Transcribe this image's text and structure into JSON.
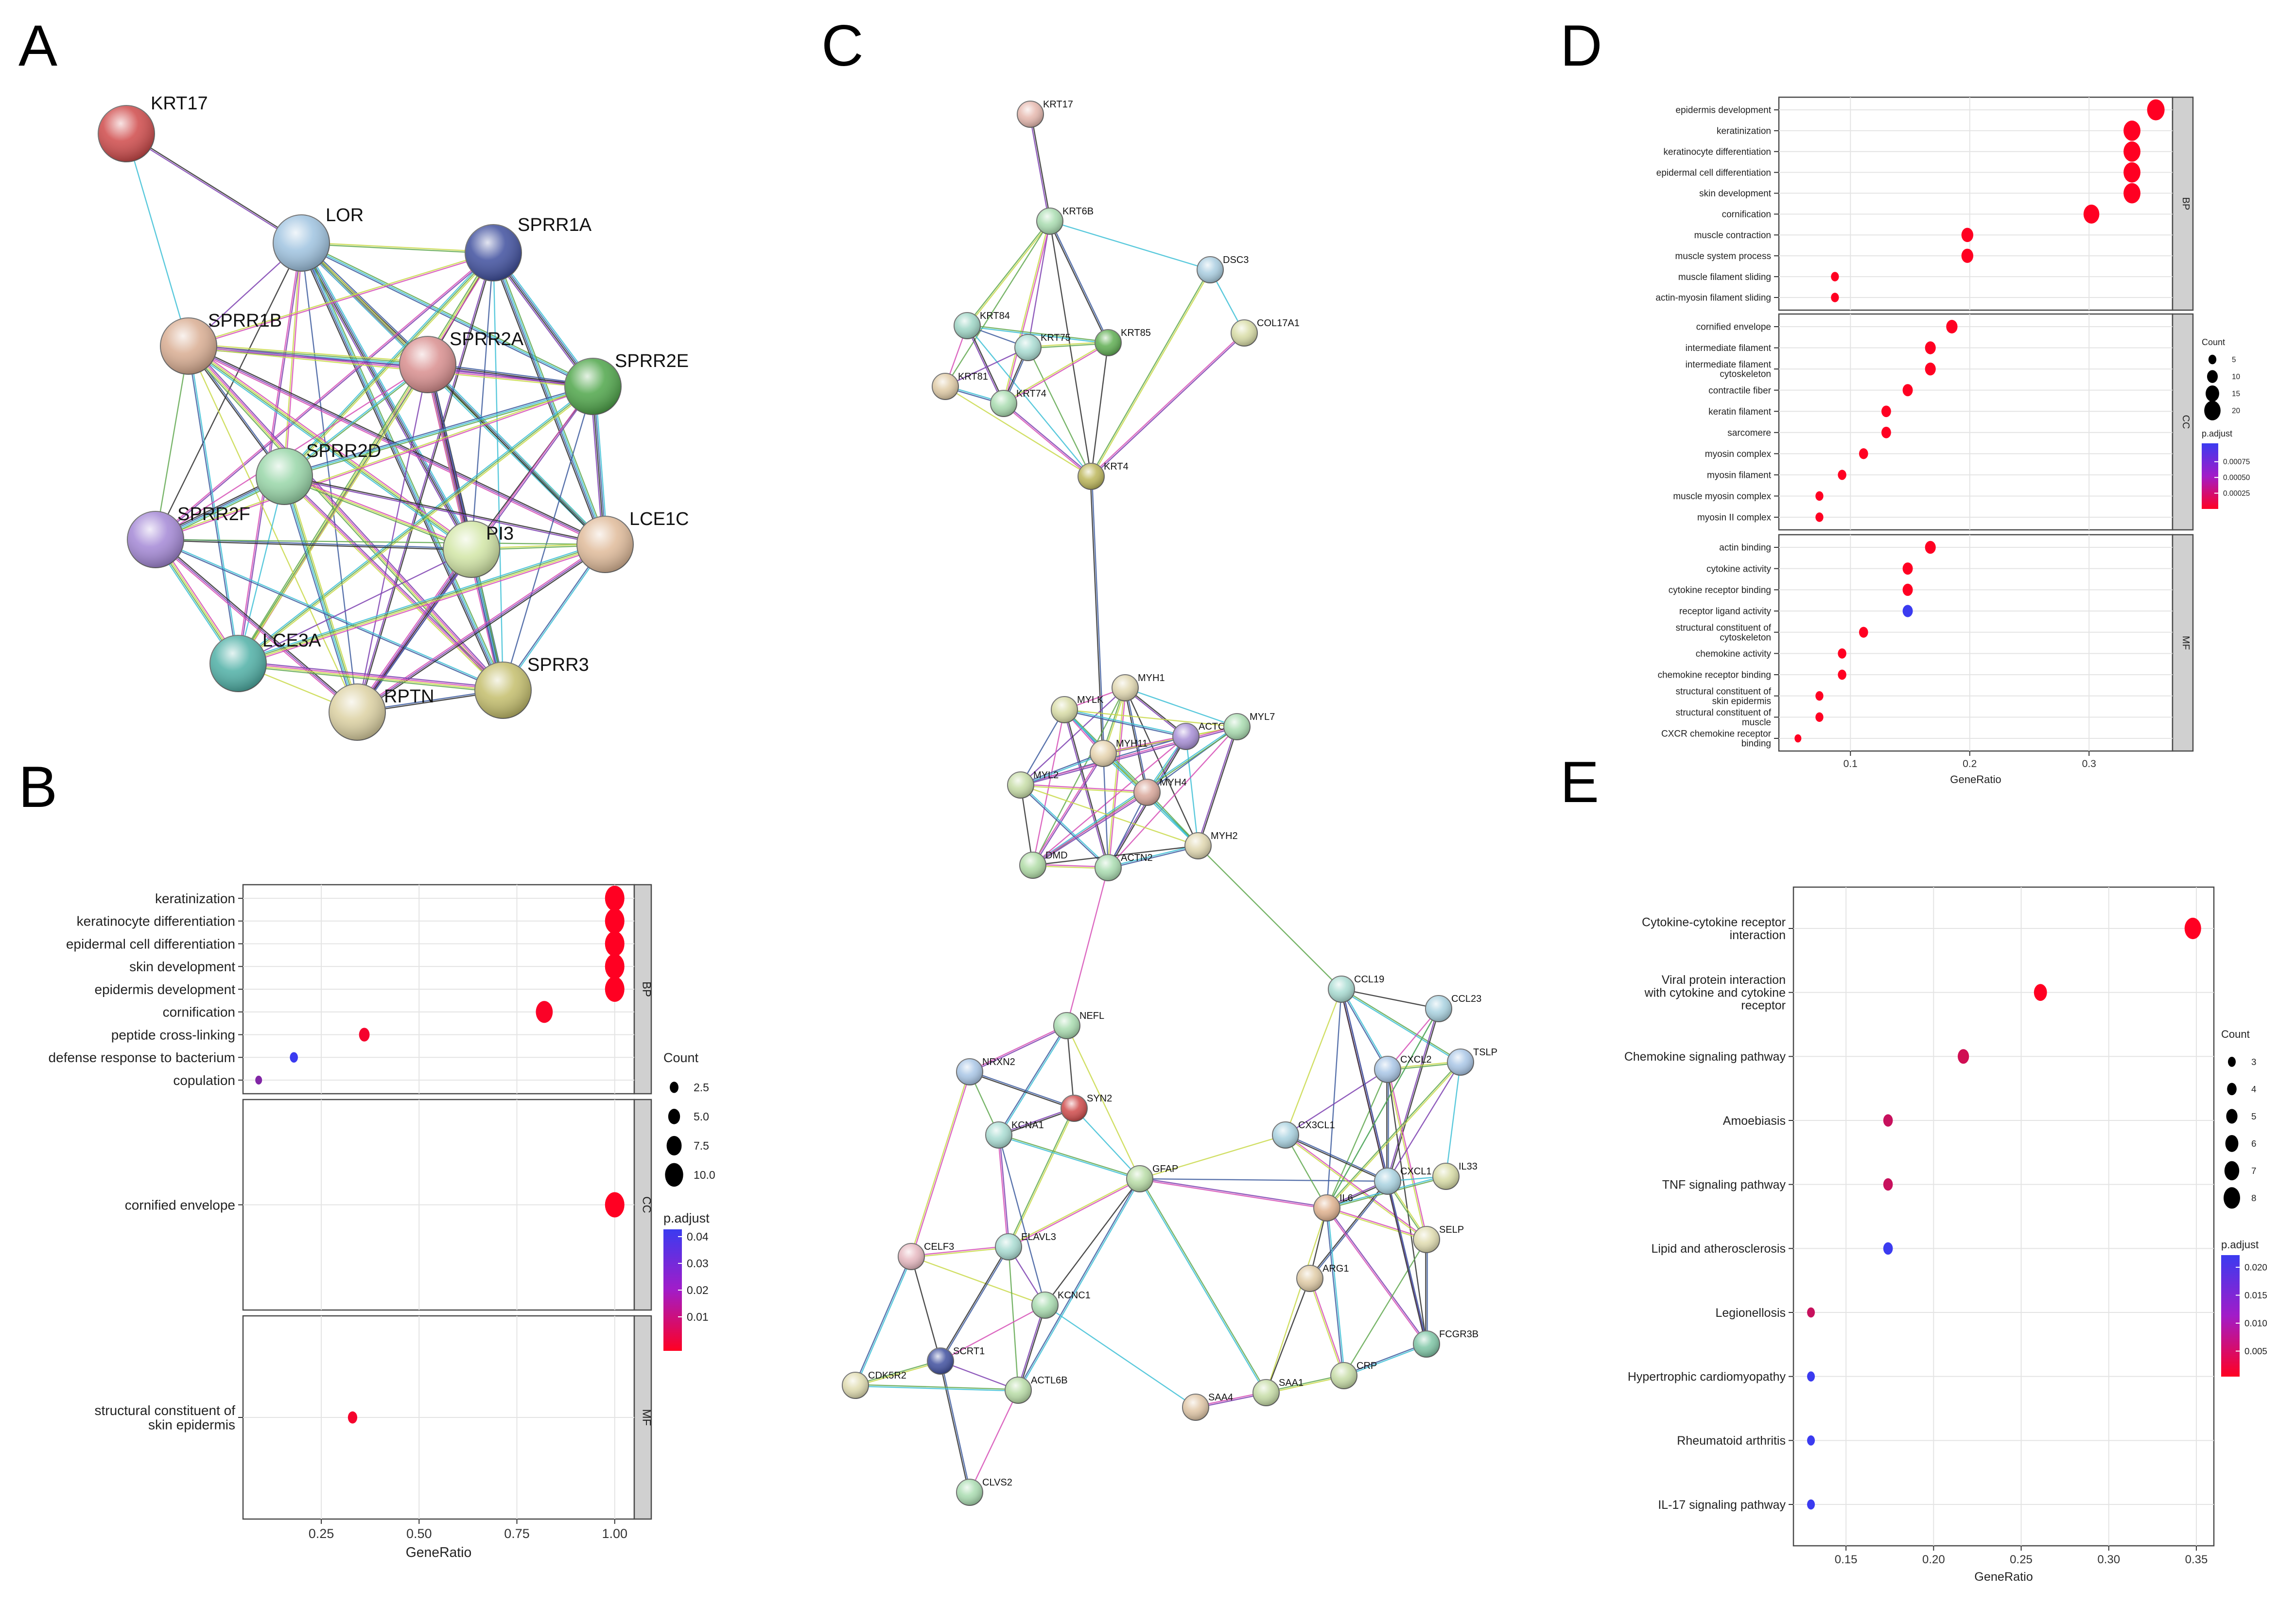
{
  "panel_labels": {
    "a": "A",
    "b": "B",
    "c": "C",
    "d": "D",
    "e": "E"
  },
  "shared": {
    "gene_ratio_label": "GeneRatio",
    "count_label": "Count",
    "padjust_label": "p.adjust"
  },
  "chart_data": [
    {
      "type": "network",
      "panel": "A",
      "nodes": [
        {
          "name": "KRT17",
          "color": "#cf4a4a"
        },
        {
          "name": "LOR",
          "color": "#9fc3e0"
        },
        {
          "name": "SPRR1A",
          "color": "#3f4f9e"
        },
        {
          "name": "SPRR1B",
          "color": "#d9ad92"
        },
        {
          "name": "SPRR2A",
          "color": "#d98f8f"
        },
        {
          "name": "SPRR2E",
          "color": "#4fa64a"
        },
        {
          "name": "SPRR2D",
          "color": "#98d6a8"
        },
        {
          "name": "SPRR2F",
          "color": "#a488d6"
        },
        {
          "name": "PI3",
          "color": "#d2e6a6"
        },
        {
          "name": "LCE1C",
          "color": "#e0bb9a"
        },
        {
          "name": "LCE3A",
          "color": "#4fb0a6"
        },
        {
          "name": "RPTN",
          "color": "#dcd1a2"
        },
        {
          "name": "SPRR3",
          "color": "#c4be6c"
        }
      ]
    },
    {
      "type": "dot",
      "panel": "B",
      "xlabel": "GeneRatio",
      "xlim": [
        0.05,
        1.05
      ],
      "xticks": [
        "0.25",
        "0.50",
        "0.75",
        "1.00"
      ],
      "count_legend": {
        "title": "Count",
        "values": [
          "2.5",
          "5.0",
          "7.5",
          "10.0"
        ]
      },
      "color_legend": {
        "title": "p.adjust",
        "values": [
          "0.04",
          "0.03",
          "0.02",
          "0.01"
        ]
      },
      "facets": [
        {
          "name": "BP",
          "terms": [
            {
              "label": [
                "keratinization"
              ],
              "ratio": 1.0,
              "count": 11,
              "padj": 0.002
            },
            {
              "label": [
                "keratinocyte differentiation"
              ],
              "ratio": 1.0,
              "count": 11,
              "padj": 0.002
            },
            {
              "label": [
                "epidermal cell differentiation"
              ],
              "ratio": 1.0,
              "count": 11,
              "padj": 0.002
            },
            {
              "label": [
                "skin development"
              ],
              "ratio": 1.0,
              "count": 11,
              "padj": 0.002
            },
            {
              "label": [
                "epidermis development"
              ],
              "ratio": 1.0,
              "count": 11,
              "padj": 0.002
            },
            {
              "label": [
                "cornification"
              ],
              "ratio": 0.82,
              "count": 9,
              "padj": 0.003
            },
            {
              "label": [
                "peptide cross-linking"
              ],
              "ratio": 0.36,
              "count": 4,
              "padj": 0.004
            },
            {
              "label": [
                "defense response to bacterium"
              ],
              "ratio": 0.18,
              "count": 2,
              "padj": 0.041
            },
            {
              "label": [
                "copulation"
              ],
              "ratio": 0.09,
              "count": 1,
              "padj": 0.027
            }
          ]
        },
        {
          "name": "CC",
          "terms": [
            {
              "label": [
                "cornified envelope"
              ],
              "ratio": 1.0,
              "count": 11,
              "padj": 0.002
            }
          ]
        },
        {
          "name": "MF",
          "terms": [
            {
              "label": [
                "structural constituent of",
                "skin epidermis"
              ],
              "ratio": 0.33,
              "count": 3,
              "padj": 0.004
            }
          ]
        }
      ]
    },
    {
      "type": "network",
      "panel": "C",
      "nodes": [
        {
          "name": "KRT17",
          "color": "#e6b8ae"
        },
        {
          "name": "KRT6B",
          "color": "#a9dcb0"
        },
        {
          "name": "DSC3",
          "color": "#a9cde0"
        },
        {
          "name": "COL17A1",
          "color": "#d8dca6"
        },
        {
          "name": "KRT84",
          "color": "#9fd6c6"
        },
        {
          "name": "KRT75",
          "color": "#a9dcd2"
        },
        {
          "name": "KRT85",
          "color": "#5fae52"
        },
        {
          "name": "KRT81",
          "color": "#e0cba6"
        },
        {
          "name": "KRT74",
          "color": "#a9dcb0"
        },
        {
          "name": "KRT4",
          "color": "#bcb65a"
        },
        {
          "name": "MYH1",
          "color": "#e0d7b0"
        },
        {
          "name": "MYLK",
          "color": "#d8dca6"
        },
        {
          "name": "ACTC1",
          "color": "#a88fd6"
        },
        {
          "name": "MYL7",
          "color": "#a9dcb0"
        },
        {
          "name": "MYH11",
          "color": "#e6d3ae"
        },
        {
          "name": "MYL2",
          "color": "#c6dca6"
        },
        {
          "name": "MYH4",
          "color": "#d9a79a"
        },
        {
          "name": "DMD",
          "color": "#b0dca6"
        },
        {
          "name": "ACTN2",
          "color": "#a9dcb0"
        },
        {
          "name": "MYH2",
          "color": "#e0d7b0"
        },
        {
          "name": "NEFL",
          "color": "#a9dcb0"
        },
        {
          "name": "NRXN2",
          "color": "#a9c6e6"
        },
        {
          "name": "SYN2",
          "color": "#cf4a4a"
        },
        {
          "name": "KCNA1",
          "color": "#a9dcd2"
        },
        {
          "name": "GFAP",
          "color": "#b8dca6"
        },
        {
          "name": "CELF3",
          "color": "#e6b8c0"
        },
        {
          "name": "ELAVL3",
          "color": "#a9dcd2"
        },
        {
          "name": "KCNC1",
          "color": "#a9dcb0"
        },
        {
          "name": "SCRT1",
          "color": "#3f4f9e"
        },
        {
          "name": "CDK5R2",
          "color": "#e0dcb0"
        },
        {
          "name": "ACTL6B",
          "color": "#b8dca6"
        },
        {
          "name": "CLVS2",
          "color": "#a9dcb0"
        },
        {
          "name": "CCL19",
          "color": "#a9dcd2"
        },
        {
          "name": "CCL23",
          "color": "#a9d2e0"
        },
        {
          "name": "CXCL2",
          "color": "#a9c6e6"
        },
        {
          "name": "TSLP",
          "color": "#a9c6e6"
        },
        {
          "name": "CX3CL1",
          "color": "#a9d2e0"
        },
        {
          "name": "CXCL1",
          "color": "#a9d2e0"
        },
        {
          "name": "IL33",
          "color": "#d8dca6"
        },
        {
          "name": "IL6",
          "color": "#e0b28f"
        },
        {
          "name": "SELP",
          "color": "#e0dcb0"
        },
        {
          "name": "ARG1",
          "color": "#e0cba6"
        },
        {
          "name": "FCGR3B",
          "color": "#7fc6a6"
        },
        {
          "name": "CRP",
          "color": "#c6dca6"
        },
        {
          "name": "SAA1",
          "color": "#c6dca6"
        },
        {
          "name": "SAA4",
          "color": "#e0c6a6"
        }
      ]
    },
    {
      "type": "dot",
      "panel": "D",
      "xlabel": "GeneRatio",
      "xlim": [
        0.04,
        0.37
      ],
      "xticks": [
        "0.1",
        "0.2",
        "0.3"
      ],
      "count_legend": {
        "title": "Count",
        "values": [
          "5",
          "10",
          "15",
          "20"
        ]
      },
      "color_legend": {
        "title": "p.adjust",
        "values": [
          "0.00075",
          "0.00050",
          "0.00025"
        ]
      },
      "facets": [
        {
          "name": "BP",
          "terms": [
            {
              "label": [
                "epidermis development"
              ],
              "ratio": 0.356,
              "count": 22,
              "padj": 4e-05
            },
            {
              "label": [
                "keratinization"
              ],
              "ratio": 0.336,
              "count": 21,
              "padj": 4e-05
            },
            {
              "label": [
                "keratinocyte differentiation"
              ],
              "ratio": 0.336,
              "count": 21,
              "padj": 4e-05
            },
            {
              "label": [
                "epidermal cell differentiation"
              ],
              "ratio": 0.336,
              "count": 21,
              "padj": 4e-05
            },
            {
              "label": [
                "skin development"
              ],
              "ratio": 0.336,
              "count": 21,
              "padj": 4e-05
            },
            {
              "label": [
                "cornification"
              ],
              "ratio": 0.302,
              "count": 19,
              "padj": 4e-05
            },
            {
              "label": [
                "muscle contraction"
              ],
              "ratio": 0.198,
              "count": 12,
              "padj": 4e-05
            },
            {
              "label": [
                "muscle system process"
              ],
              "ratio": 0.198,
              "count": 12,
              "padj": 4e-05
            },
            {
              "label": [
                "muscle filament sliding"
              ],
              "ratio": 0.087,
              "count": 5,
              "padj": 4e-05
            },
            {
              "label": [
                "actin-myosin filament sliding"
              ],
              "ratio": 0.087,
              "count": 5,
              "padj": 4e-05
            }
          ]
        },
        {
          "name": "CC",
          "terms": [
            {
              "label": [
                "cornified envelope"
              ],
              "ratio": 0.185,
              "count": 11,
              "padj": 4e-05
            },
            {
              "label": [
                "intermediate filament"
              ],
              "ratio": 0.167,
              "count": 10,
              "padj": 4e-05
            },
            {
              "label": [
                "intermediate filament",
                "cytoskeleton"
              ],
              "ratio": 0.167,
              "count": 10,
              "padj": 4e-05
            },
            {
              "label": [
                "contractile fiber"
              ],
              "ratio": 0.148,
              "count": 9,
              "padj": 4e-05
            },
            {
              "label": [
                "keratin filament"
              ],
              "ratio": 0.13,
              "count": 8,
              "padj": 4e-05
            },
            {
              "label": [
                "sarcomere"
              ],
              "ratio": 0.13,
              "count": 8,
              "padj": 4e-05
            },
            {
              "label": [
                "myosin complex"
              ],
              "ratio": 0.111,
              "count": 7,
              "padj": 4e-05
            },
            {
              "label": [
                "myosin filament"
              ],
              "ratio": 0.093,
              "count": 6,
              "padj": 4e-05
            },
            {
              "label": [
                "muscle myosin complex"
              ],
              "ratio": 0.074,
              "count": 5,
              "padj": 4e-05
            },
            {
              "label": [
                "myosin II complex"
              ],
              "ratio": 0.074,
              "count": 5,
              "padj": 4e-05
            }
          ]
        },
        {
          "name": "MF",
          "terms": [
            {
              "label": [
                "actin binding"
              ],
              "ratio": 0.167,
              "count": 10,
              "padj": 4e-05
            },
            {
              "label": [
                "cytokine activity"
              ],
              "ratio": 0.148,
              "count": 9,
              "padj": 4e-05
            },
            {
              "label": [
                "cytokine receptor binding"
              ],
              "ratio": 0.148,
              "count": 9,
              "padj": 4e-05
            },
            {
              "label": [
                "receptor ligand activity"
              ],
              "ratio": 0.148,
              "count": 9,
              "padj": 0.0009
            },
            {
              "label": [
                "structural constituent of",
                "cytoskeleton"
              ],
              "ratio": 0.111,
              "count": 7,
              "padj": 4e-05
            },
            {
              "label": [
                "chemokine activity"
              ],
              "ratio": 0.093,
              "count": 6,
              "padj": 4e-05
            },
            {
              "label": [
                "chemokine receptor binding"
              ],
              "ratio": 0.093,
              "count": 6,
              "padj": 4e-05
            },
            {
              "label": [
                "structural constituent of",
                "skin epidermis"
              ],
              "ratio": 0.074,
              "count": 5,
              "padj": 4e-05
            },
            {
              "label": [
                "structural constituent of",
                "muscle"
              ],
              "ratio": 0.074,
              "count": 5,
              "padj": 4e-05
            },
            {
              "label": [
                "CXCR chemokine receptor",
                "binding"
              ],
              "ratio": 0.056,
              "count": 3,
              "padj": 4e-05
            }
          ]
        }
      ]
    },
    {
      "type": "dot",
      "panel": "E",
      "xlabel": "GeneRatio",
      "xlim": [
        0.12,
        0.36
      ],
      "xticks": [
        "0.15",
        "0.20",
        "0.25",
        "0.30",
        "0.35"
      ],
      "count_legend": {
        "title": "Count",
        "values": [
          "3",
          "4",
          "5",
          "6",
          "7",
          "8"
        ]
      },
      "color_legend": {
        "title": "p.adjust",
        "values": [
          "0.020",
          "0.015",
          "0.010",
          "0.005"
        ]
      },
      "facets": [
        {
          "name": "",
          "terms": [
            {
              "label": [
                "Cytokine-cytokine receptor",
                "interaction"
              ],
              "ratio": 0.348,
              "count": 8,
              "padj": 0.001
            },
            {
              "label": [
                "Viral protein interaction",
                "with cytokine and cytokine",
                "receptor"
              ],
              "ratio": 0.261,
              "count": 6,
              "padj": 0.001
            },
            {
              "label": [
                "Chemokine signaling pathway"
              ],
              "ratio": 0.217,
              "count": 5,
              "padj": 0.006
            },
            {
              "label": [
                "Amoebiasis"
              ],
              "ratio": 0.174,
              "count": 4,
              "padj": 0.007
            },
            {
              "label": [
                "TNF signaling pathway"
              ],
              "ratio": 0.174,
              "count": 4,
              "padj": 0.007
            },
            {
              "label": [
                "Lipid and atherosclerosis"
              ],
              "ratio": 0.174,
              "count": 4,
              "padj": 0.022
            },
            {
              "label": [
                "Legionellosis"
              ],
              "ratio": 0.13,
              "count": 3,
              "padj": 0.007
            },
            {
              "label": [
                "Hypertrophic cardiomyopathy"
              ],
              "ratio": 0.13,
              "count": 3,
              "padj": 0.022
            },
            {
              "label": [
                "Rheumatoid arthritis"
              ],
              "ratio": 0.13,
              "count": 3,
              "padj": 0.022
            },
            {
              "label": [
                "IL-17 signaling pathway"
              ],
              "ratio": 0.13,
              "count": 3,
              "padj": 0.022
            }
          ]
        }
      ]
    }
  ]
}
